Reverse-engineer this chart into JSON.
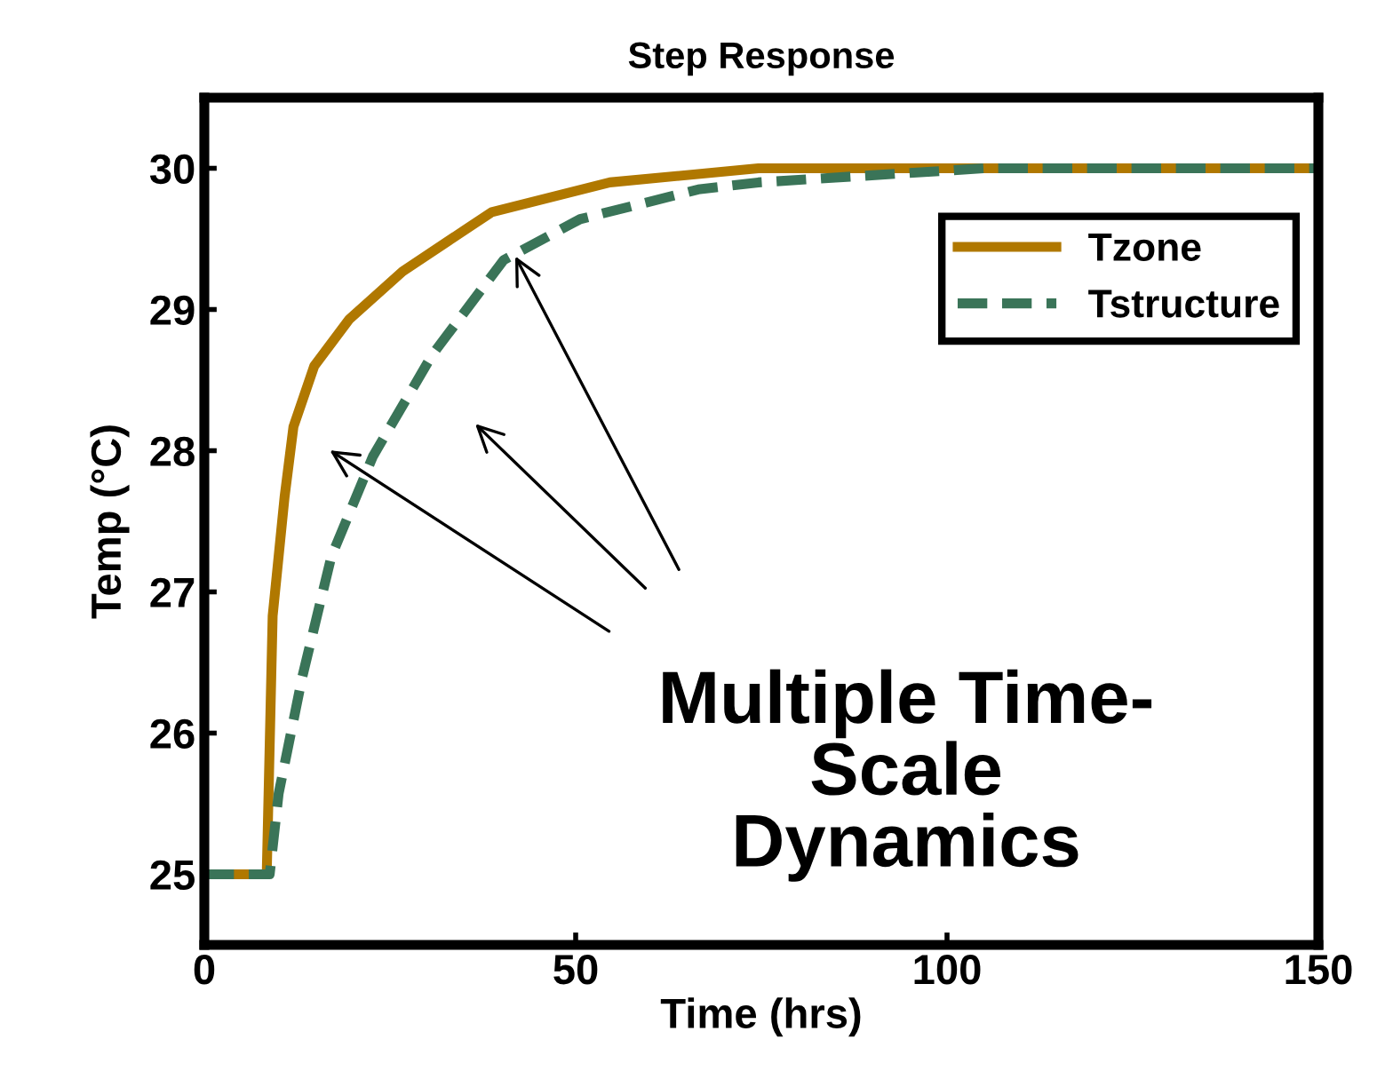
{
  "chart_data": {
    "type": "line",
    "title": "Step Response",
    "xlabel": "Time (hrs)",
    "ylabel": "Temp (°C)",
    "xlim": [
      0,
      150
    ],
    "ylim": [
      24.5,
      30.5
    ],
    "xticks": [
      0,
      50,
      100,
      150
    ],
    "yticks": [
      25,
      26,
      27,
      28,
      29,
      30
    ],
    "grid": false,
    "legend": "top right",
    "marker": "none",
    "annotations": [
      "Multiple Time-\nScale\nDynamics"
    ],
    "series": [
      {
        "name": "Tzone",
        "color": "#b07800",
        "line_style": "solid",
        "x": [
          0,
          8.4,
          9.2,
          10.8,
          12,
          14.8,
          19.5,
          26.7,
          38.7,
          54.6,
          74.6,
          150
        ],
        "values": [
          25,
          25,
          26.83,
          27.67,
          28.17,
          28.6,
          28.93,
          29.27,
          29.69,
          29.9,
          30,
          30
        ]
      },
      {
        "name": "Tstructure",
        "color": "#3a7458",
        "line_style": "dashed",
        "x": [
          0,
          8.8,
          10,
          13.2,
          17.1,
          22.7,
          30.7,
          40.3,
          50.6,
          66.5,
          74.6,
          105,
          150
        ],
        "values": [
          25,
          25,
          25.57,
          26.4,
          27.25,
          27.96,
          28.68,
          29.35,
          29.64,
          29.85,
          29.9,
          30,
          30
        ]
      }
    ]
  }
}
